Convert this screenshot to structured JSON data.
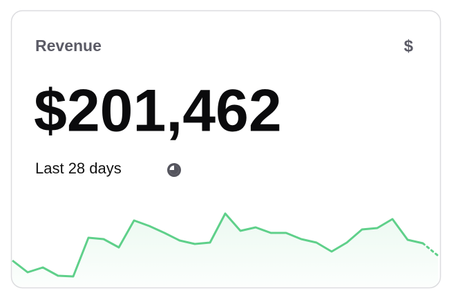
{
  "card": {
    "title": "Revenue",
    "icon": "$",
    "value": "$201,462",
    "subtitle": "Last 28 days"
  },
  "chart_data": {
    "type": "line",
    "color": "#5fd08a",
    "values": [
      38,
      21,
      28,
      16,
      15,
      71,
      69,
      57,
      96,
      88,
      78,
      67,
      62,
      64,
      106,
      81,
      86,
      78,
      78,
      69,
      64,
      51,
      64,
      83,
      85,
      98,
      68,
      63,
      45
    ],
    "ylim": [
      0,
      110
    ]
  }
}
